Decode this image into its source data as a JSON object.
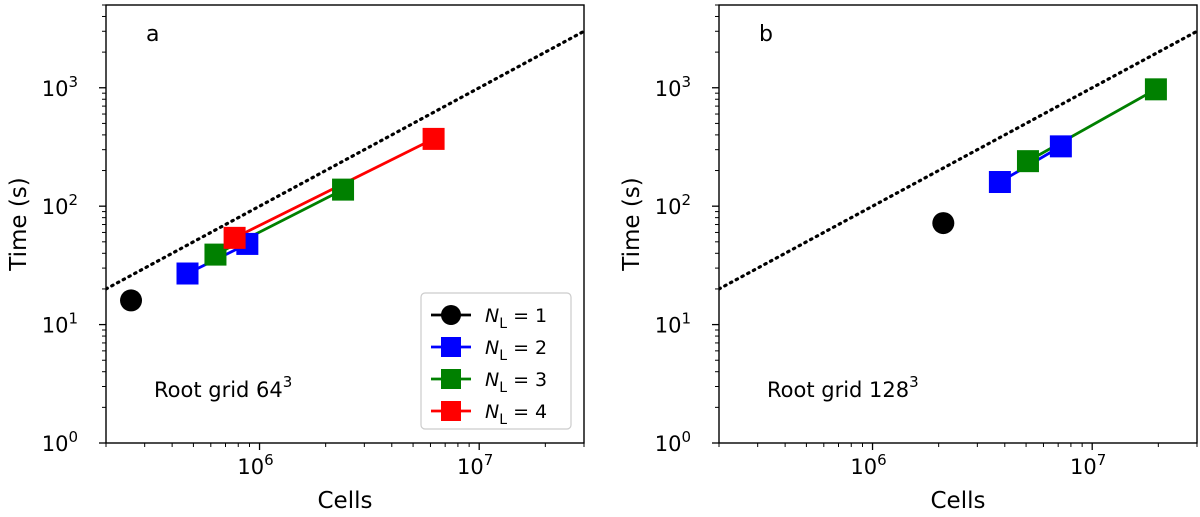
{
  "chart_data": [
    {
      "type": "line",
      "panel_label": "a",
      "annotation": {
        "text": "Root grid 64",
        "superscript": "3"
      },
      "xlabel": "Cells",
      "ylabel": "Time (s)",
      "xscale": "log",
      "yscale": "log",
      "xlim": [
        200000,
        30000000
      ],
      "ylim": [
        1,
        5000
      ],
      "xticks": [
        {
          "value": 1000000,
          "base": "10",
          "exp": "6"
        },
        {
          "value": 10000000,
          "base": "10",
          "exp": "7"
        }
      ],
      "yticks": [
        {
          "value": 1,
          "base": "10",
          "exp": "0"
        },
        {
          "value": 10,
          "base": "10",
          "exp": "1"
        },
        {
          "value": 100,
          "base": "10",
          "exp": "2"
        },
        {
          "value": 1000,
          "base": "10",
          "exp": "3"
        }
      ],
      "reference_line": {
        "style": "dotted",
        "color": "#000000",
        "points": [
          [
            200000,
            20
          ],
          [
            30000000,
            3000
          ]
        ]
      },
      "legend": {
        "position": "bottom-right"
      },
      "series": [
        {
          "name": "N_L = 1",
          "label_var": "N",
          "label_sub": "L",
          "label_rhs": "= 1",
          "color": "#000000",
          "marker": "circle",
          "x": [
            260000
          ],
          "y": [
            16
          ]
        },
        {
          "name": "N_L = 2",
          "label_var": "N",
          "label_sub": "L",
          "label_rhs": "= 2",
          "color": "#0000ff",
          "marker": "square",
          "x": [
            470000,
            880000
          ],
          "y": [
            27,
            48
          ]
        },
        {
          "name": "N_L = 3",
          "label_var": "N",
          "label_sub": "L",
          "label_rhs": "= 3",
          "color": "#008000",
          "marker": "square",
          "x": [
            630000,
            2400000
          ],
          "y": [
            39,
            138
          ]
        },
        {
          "name": "N_L = 4",
          "label_var": "N",
          "label_sub": "L",
          "label_rhs": "= 4",
          "color": "#ff0000",
          "marker": "square",
          "x": [
            770000,
            6200000
          ],
          "y": [
            54,
            370
          ]
        }
      ]
    },
    {
      "type": "line",
      "panel_label": "b",
      "annotation": {
        "text": "Root grid 128",
        "superscript": "3"
      },
      "xlabel": "Cells",
      "ylabel": "Time (s)",
      "xscale": "log",
      "yscale": "log",
      "xlim": [
        200000,
        30000000
      ],
      "ylim": [
        1,
        5000
      ],
      "xticks": [
        {
          "value": 1000000,
          "base": "10",
          "exp": "6"
        },
        {
          "value": 10000000,
          "base": "10",
          "exp": "7"
        }
      ],
      "yticks": [
        {
          "value": 1,
          "base": "10",
          "exp": "0"
        },
        {
          "value": 10,
          "base": "10",
          "exp": "1"
        },
        {
          "value": 100,
          "base": "10",
          "exp": "2"
        },
        {
          "value": 1000,
          "base": "10",
          "exp": "3"
        }
      ],
      "reference_line": {
        "style": "dotted",
        "color": "#000000",
        "points": [
          [
            200000,
            20
          ],
          [
            30000000,
            3000
          ]
        ]
      },
      "series": [
        {
          "name": "N_L = 1",
          "color": "#000000",
          "marker": "circle",
          "x": [
            2100000
          ],
          "y": [
            72
          ]
        },
        {
          "name": "N_L = 2",
          "color": "#0000ff",
          "marker": "square",
          "x": [
            3800000,
            7200000
          ],
          "y": [
            160,
            320
          ]
        },
        {
          "name": "N_L = 3",
          "color": "#008000",
          "marker": "square",
          "x": [
            5100000,
            19500000
          ],
          "y": [
            240,
            970
          ]
        }
      ]
    }
  ]
}
